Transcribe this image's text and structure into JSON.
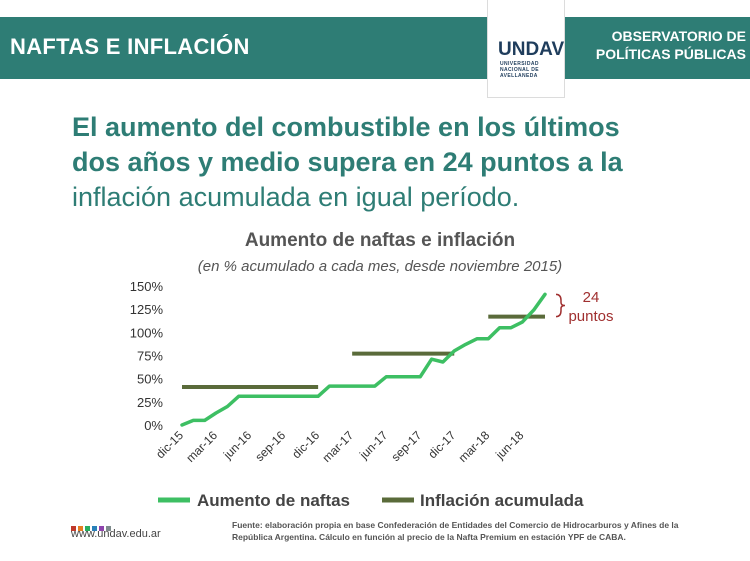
{
  "header": {
    "title": "NAFTAS E INFLACIÓN",
    "org_line1": "OBSERVATORIO DE",
    "org_line2": "POLÍTICAS PÚBLICAS"
  },
  "logo": {
    "mark": "UNDAV",
    "line1": "UNIVERSIDAD",
    "line2": "NACIONAL DE",
    "line3": "AVELLANEDA"
  },
  "headline": {
    "line1": "El aumento del combustible en los últimos",
    "line2": "dos años y medio supera en 24 puntos a la",
    "line3": "inflación acumulada en igual período."
  },
  "chart_data": {
    "type": "line",
    "title": "Aumento de naftas e inflación",
    "subtitle": "(en % acumulado a cada mes, desde noviembre 2015)",
    "ylim": [
      0,
      150
    ],
    "yticks": [
      "0%",
      "25%",
      "50%",
      "75%",
      "100%",
      "125%",
      "150%"
    ],
    "ytick_values": [
      0,
      25,
      50,
      75,
      100,
      125,
      150
    ],
    "categories": [
      "dic-15",
      "ene-16",
      "feb-16",
      "mar-16",
      "abr-16",
      "may-16",
      "jun-16",
      "jul-16",
      "ago-16",
      "sep-16",
      "oct-16",
      "nov-16",
      "dic-16",
      "ene-17",
      "feb-17",
      "mar-17",
      "abr-17",
      "may-17",
      "jun-17",
      "jul-17",
      "ago-17",
      "sep-17",
      "oct-17",
      "nov-17",
      "dic-17",
      "ene-18",
      "feb-18",
      "mar-18",
      "abr-18",
      "may-18",
      "jun-18",
      "jul-18",
      "ago-18"
    ],
    "xtick_labels": [
      {
        "index": 0,
        "label": "dic-15"
      },
      {
        "index": 3,
        "label": "mar-16"
      },
      {
        "index": 6,
        "label": "jun-16"
      },
      {
        "index": 9,
        "label": "sep-16"
      },
      {
        "index": 12,
        "label": "dic-16"
      },
      {
        "index": 15,
        "label": "mar-17"
      },
      {
        "index": 18,
        "label": "jun-17"
      },
      {
        "index": 21,
        "label": "sep-17"
      },
      {
        "index": 24,
        "label": "dic-17"
      },
      {
        "index": 27,
        "label": "mar-18"
      },
      {
        "index": 30,
        "label": "jun-18"
      }
    ],
    "series": [
      {
        "name": "Aumento de naftas",
        "color": "#3dbf63",
        "style": "line",
        "values": [
          0,
          5,
          5,
          13,
          20,
          31,
          31,
          31,
          31,
          31,
          31,
          31,
          31,
          42,
          42,
          42,
          42,
          42,
          52,
          52,
          52,
          52,
          71,
          68,
          80,
          87,
          93,
          93,
          105,
          105,
          111,
          124,
          141
        ]
      },
      {
        "name": "Inflación acumulada",
        "color": "#5a6b3a",
        "style": "steps",
        "segments": [
          {
            "start": 0,
            "end": 12,
            "value": 41
          },
          {
            "start": 15,
            "end": 24,
            "value": 77
          },
          {
            "start": 27,
            "end": 32,
            "value": 117
          }
        ]
      }
    ],
    "annotation": {
      "line1": "24",
      "line2": "puntos",
      "color": "#a03030",
      "from_value": 117,
      "to_value": 141
    },
    "legend_position": "bottom"
  },
  "footer": {
    "url": "www.undav.edu.ar",
    "source_line1": "Fuente: elaboración propia en base Confederación de Entidades del Comercio de Hidrocarburos y Afines de la",
    "source_line2": "República Argentina. Cálculo en función al precio de la Nafta Premium en estación YPF de CABA.",
    "dot_colors": [
      "#c0392b",
      "#e67e22",
      "#27ae60",
      "#2980b9",
      "#8e44ad",
      "#7f8c8d"
    ]
  }
}
